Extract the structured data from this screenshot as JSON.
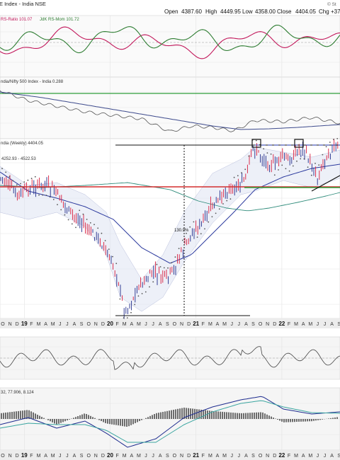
{
  "header": {
    "title": "E Index - India NSE",
    "ohlc": {
      "open_label": "Open",
      "open": "4387.60",
      "high_label": "High",
      "high": "4449.95",
      "low_label": "Low",
      "low": "4358.00",
      "close_label": "Close",
      "close": "4404.05",
      "chg_label": "Chg",
      "chg": "+37"
    },
    "source": "© St"
  },
  "panels": {
    "rrg": {
      "ratio_label": "RS-Ratio 101.07",
      "mom_label": "JdK RS-Mom 101.72",
      "ratio_color": "#c2185b",
      "mom_color": "#2e7d32"
    },
    "relative": {
      "label": "ndia/Nifty 500 Index - India 0.288",
      "line_color": "#3d4a8c"
    },
    "price": {
      "label": "ndia (Weekly) 4404.05",
      "bb_label": "4252.93 - 4522.53",
      "annotation": "130.9%"
    },
    "x_axis": {
      "ticks": [
        {
          "label": "O",
          "type": "m"
        },
        {
          "label": "N",
          "type": "m"
        },
        {
          "label": "D",
          "type": "m"
        },
        {
          "label": "19",
          "type": "y"
        },
        {
          "label": "F",
          "type": "m"
        },
        {
          "label": "M",
          "type": "m"
        },
        {
          "label": "A",
          "type": "m"
        },
        {
          "label": "M",
          "type": "m"
        },
        {
          "label": "J",
          "type": "m"
        },
        {
          "label": "J",
          "type": "m"
        },
        {
          "label": "A",
          "type": "m"
        },
        {
          "label": "S",
          "type": "m"
        },
        {
          "label": "O",
          "type": "m"
        },
        {
          "label": "N",
          "type": "m"
        },
        {
          "label": "D",
          "type": "m"
        },
        {
          "label": "20",
          "type": "y"
        },
        {
          "label": "F",
          "type": "m"
        },
        {
          "label": "M",
          "type": "m"
        },
        {
          "label": "A",
          "type": "m"
        },
        {
          "label": "M",
          "type": "m"
        },
        {
          "label": "J",
          "type": "m"
        },
        {
          "label": "J",
          "type": "m"
        },
        {
          "label": "A",
          "type": "m"
        },
        {
          "label": "S",
          "type": "m"
        },
        {
          "label": "O",
          "type": "m"
        },
        {
          "label": "N",
          "type": "m"
        },
        {
          "label": "D",
          "type": "m"
        },
        {
          "label": "21",
          "type": "y"
        },
        {
          "label": "F",
          "type": "m"
        },
        {
          "label": "M",
          "type": "m"
        },
        {
          "label": "A",
          "type": "m"
        },
        {
          "label": "M",
          "type": "m"
        },
        {
          "label": "J",
          "type": "m"
        },
        {
          "label": "J",
          "type": "m"
        },
        {
          "label": "A",
          "type": "m"
        },
        {
          "label": "S",
          "type": "m"
        },
        {
          "label": "O",
          "type": "m"
        },
        {
          "label": "N",
          "type": "m"
        },
        {
          "label": "D",
          "type": "m"
        },
        {
          "label": "22",
          "type": "y"
        },
        {
          "label": "F",
          "type": "m"
        },
        {
          "label": "M",
          "type": "m"
        },
        {
          "label": "A",
          "type": "m"
        },
        {
          "label": "M",
          "type": "m"
        },
        {
          "label": "J",
          "type": "m"
        },
        {
          "label": "J",
          "type": "m"
        },
        {
          "label": "A",
          "type": "m"
        },
        {
          "label": "S",
          "type": "m"
        }
      ]
    },
    "rsi": {},
    "macd": {
      "label": "32, 77.906, 8.124"
    }
  },
  "chart_data": {
    "type": "line",
    "title": "",
    "xlabel": "",
    "ylabel": "",
    "frequency": "weekly",
    "x_range": [
      "2018-10",
      "2022-09"
    ],
    "grid": true,
    "last_close": 4404.05,
    "price_low_2020": 1906,
    "price_high_2021": 4450,
    "rally_pct": 130.9,
    "resistance": 4450,
    "support": 3850,
    "series": [
      {
        "name": "India (Weekly)",
        "x": [
          "2018-10",
          "2018-11",
          "2018-12",
          "2019-01",
          "2019-02",
          "2019-03",
          "2019-04",
          "2019-05",
          "2019-06",
          "2019-07",
          "2019-08",
          "2019-09",
          "2019-10",
          "2019-11",
          "2019-12",
          "2020-01",
          "2020-02",
          "2020-03",
          "2020-04",
          "2020-05",
          "2020-06",
          "2020-07",
          "2020-08",
          "2020-09",
          "2020-10",
          "2020-11",
          "2020-12",
          "2021-01",
          "2021-02",
          "2021-03",
          "2021-04",
          "2021-05",
          "2021-06",
          "2021-07",
          "2021-08",
          "2021-09",
          "2021-10",
          "2021-11",
          "2021-12",
          "2022-01",
          "2022-02",
          "2022-03",
          "2022-04",
          "2022-05",
          "2022-06",
          "2022-07",
          "2022-08",
          "2022-09"
        ],
        "values": [
          3950,
          3820,
          3700,
          3750,
          3800,
          3850,
          3850,
          3800,
          3650,
          3500,
          3380,
          3300,
          3150,
          3100,
          2950,
          2700,
          2500,
          1950,
          2100,
          2350,
          2400,
          2550,
          2480,
          2450,
          2600,
          2850,
          3050,
          3200,
          3300,
          3500,
          3600,
          3750,
          3800,
          3850,
          3950,
          4420,
          4300,
          4180,
          4150,
          4300,
          4200,
          4350,
          4420,
          4180,
          3950,
          4250,
          4380,
          4404
        ]
      }
    ]
  }
}
